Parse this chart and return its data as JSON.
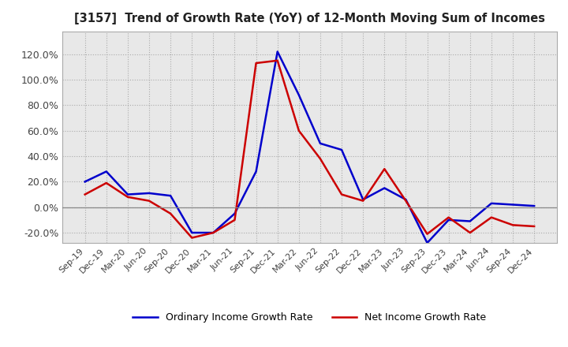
{
  "title": "[3157]  Trend of Growth Rate (YoY) of 12-Month Moving Sum of Incomes",
  "x_labels": [
    "Sep-19",
    "Dec-19",
    "Mar-20",
    "Jun-20",
    "Sep-20",
    "Dec-20",
    "Mar-21",
    "Jun-21",
    "Sep-21",
    "Dec-21",
    "Mar-22",
    "Jun-22",
    "Sep-22",
    "Dec-22",
    "Mar-23",
    "Jun-23",
    "Sep-23",
    "Dec-23",
    "Mar-24",
    "Jun-24",
    "Sep-24",
    "Dec-24"
  ],
  "ordinary_income": [
    0.2,
    0.28,
    0.1,
    0.11,
    0.09,
    -0.2,
    -0.2,
    -0.05,
    0.28,
    1.22,
    0.88,
    0.5,
    0.45,
    0.06,
    0.15,
    0.06,
    -0.28,
    -0.1,
    -0.11,
    0.03,
    0.02,
    0.01
  ],
  "net_income": [
    0.1,
    0.19,
    0.08,
    0.05,
    -0.05,
    -0.24,
    -0.2,
    -0.1,
    1.13,
    1.15,
    0.6,
    0.38,
    0.1,
    0.05,
    0.3,
    0.05,
    -0.21,
    -0.08,
    -0.2,
    -0.08,
    -0.14,
    -0.15
  ],
  "ordinary_color": "#0000cc",
  "net_color": "#cc0000",
  "ylim": [
    -0.28,
    1.38
  ],
  "yticks": [
    -0.2,
    0.0,
    0.2,
    0.4,
    0.6,
    0.8,
    1.0,
    1.2
  ],
  "plot_bg_color": "#e8e8e8",
  "fig_bg_color": "#ffffff",
  "grid_color": "#ffffff",
  "legend_ordinary": "Ordinary Income Growth Rate",
  "legend_net": "Net Income Growth Rate",
  "line_width": 1.8
}
